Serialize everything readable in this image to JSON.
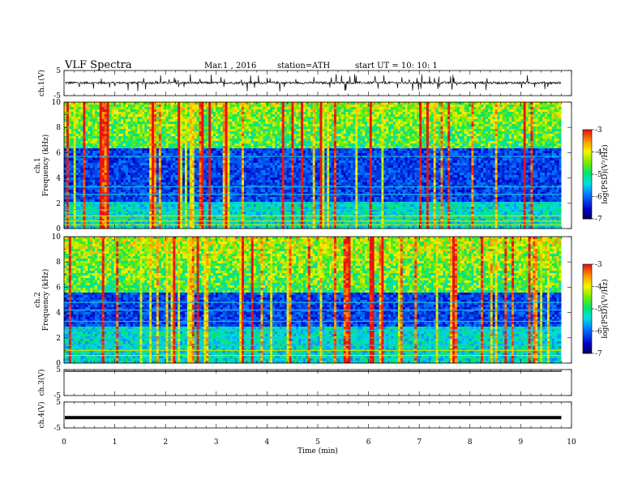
{
  "header": {
    "title": "VLF  Spectra",
    "date": "Mar.1  , 2016",
    "station": "station=ATH",
    "start": "start  UT  =   10: 10: 1"
  },
  "chart_data": [
    {
      "type": "line",
      "panel": "ch1-waveform",
      "ylabel": "ch.1(V)",
      "ylim": [
        -5,
        5
      ],
      "y_ticks": [
        "5",
        "-5"
      ],
      "baseline_v": 0.1,
      "color": "#000000"
    },
    {
      "type": "heatmap",
      "panel": "ch1-spectrogram",
      "ylabel": "ch.1\nFrequency  (kHz)",
      "ylim": [
        0,
        10
      ],
      "y_ticks": [
        "0",
        "2",
        "4",
        "6",
        "8",
        "10"
      ],
      "colorbar": {
        "label": "log(PSD)(V²/Hz)",
        "range": [
          -7,
          -3
        ],
        "ticks": [
          "-3",
          "-4",
          "-5",
          "-6",
          "-7"
        ]
      },
      "dark_band_khz": [
        2.2,
        6.0
      ],
      "horizontal_lines_khz": [
        0.3,
        0.6,
        1.0,
        1.5,
        2.0,
        2.7,
        3.3,
        5.7
      ]
    },
    {
      "type": "heatmap",
      "panel": "ch2-spectrogram",
      "ylabel": "ch.2\nFrequency  (kHz)",
      "ylim": [
        0,
        10
      ],
      "y_ticks": [
        "0",
        "2",
        "4",
        "6",
        "8",
        "10"
      ],
      "colorbar": {
        "label": "log(PSD)(V²/Hz)",
        "range": [
          -7,
          -3
        ],
        "ticks": [
          "-3",
          "-4",
          "-5",
          "-6",
          "-7"
        ]
      },
      "dark_band_khz": [
        2.8,
        5.3
      ],
      "horizontal_lines_khz": [
        0.6,
        1.0,
        1.4,
        2.0,
        2.6,
        3.3,
        4.2,
        4.8
      ]
    },
    {
      "type": "line",
      "panel": "ch3-waveform",
      "ylabel": "ch.3(V)",
      "ylim": [
        -5,
        5
      ],
      "y_ticks": [
        "5",
        "-5"
      ],
      "baseline_v": 5.0,
      "color": "#000000"
    },
    {
      "type": "line",
      "panel": "ch4-waveform",
      "ylabel": "ch.4(V)",
      "ylim": [
        -5,
        5
      ],
      "y_ticks": [
        "5",
        "-5"
      ],
      "baseline_v": -1.0,
      "color": "#000000"
    }
  ],
  "x_axis": {
    "label": "Time  (min)",
    "xlim": [
      0,
      10
    ],
    "ticks": [
      "0",
      "1",
      "2",
      "3",
      "4",
      "5",
      "6",
      "7",
      "8",
      "9",
      "10"
    ],
    "data_end_min": 9.8
  }
}
